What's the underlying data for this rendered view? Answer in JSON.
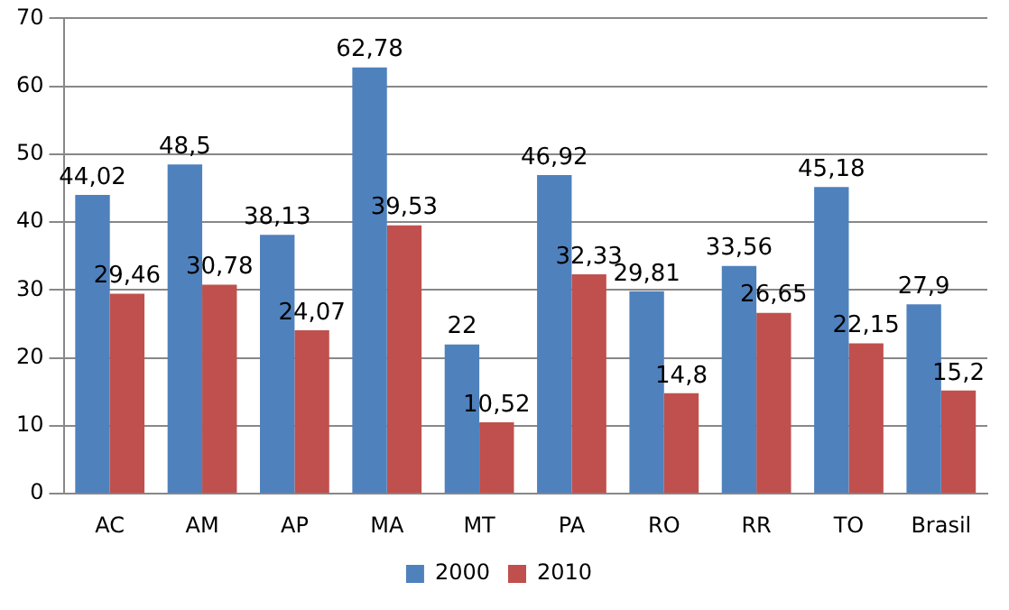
{
  "chart_data": {
    "type": "bar",
    "categories": [
      "AC",
      "AM",
      "AP",
      "MA",
      "MT",
      "PA",
      "RO",
      "RR",
      "TO",
      "Brasil"
    ],
    "series": [
      {
        "name": "2000",
        "color": "#4f81bd",
        "values": [
          44.02,
          48.5,
          38.13,
          62.78,
          22,
          46.92,
          29.81,
          33.56,
          45.18,
          27.9
        ],
        "value_labels": [
          "44,02",
          "48,5",
          "38,13",
          "62,78",
          "22",
          "46,92",
          "29,81",
          "33,56",
          "45,18",
          "27,9"
        ]
      },
      {
        "name": "2010",
        "color": "#c0504d",
        "values": [
          29.46,
          30.78,
          24.07,
          39.53,
          10.52,
          32.33,
          14.8,
          26.65,
          22.15,
          15.2
        ],
        "value_labels": [
          "29,46",
          "30,78",
          "24,07",
          "39,53",
          "10,52",
          "32,33",
          "14,8",
          "26,65",
          "22,15",
          "15,2"
        ]
      }
    ],
    "ylim": [
      0,
      70
    ],
    "yticks": [
      0,
      10,
      20,
      30,
      40,
      50,
      60,
      70
    ],
    "grid": "y",
    "legend": "bottom"
  }
}
